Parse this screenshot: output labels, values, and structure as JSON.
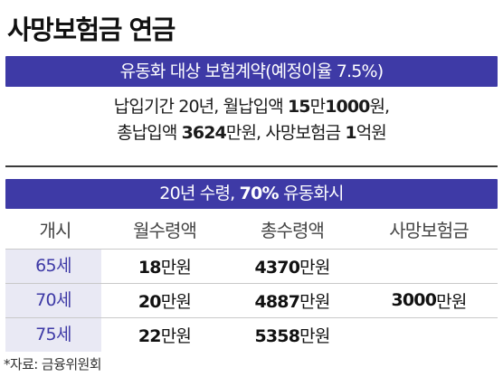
{
  "title": "사망보험금 연금",
  "band1": "유동화 대상 보험계약(예정이율 7.5%)",
  "summary": {
    "line1_prefix": "납입기간 20년, 월납입액 ",
    "line1_bold1": "15",
    "line1_mid": "만",
    "line1_bold2": "1000",
    "line1_suffix": "원,",
    "line2_prefix": "총납입액 ",
    "line2_bold1": "3624",
    "line2_mid": "만원, 사망보험금 ",
    "line2_bold2": "1",
    "line2_suffix": "억원"
  },
  "band2": {
    "prefix": "20년 수령, ",
    "bold": "70%",
    "suffix": " 유동화시"
  },
  "table": {
    "headers": [
      "개시",
      "월수령액",
      "총수령액",
      "사망보험금"
    ],
    "rows": [
      {
        "age": "65세",
        "monthly_num": "18",
        "monthly_unit": "만원",
        "total_num": "4370",
        "total_unit": "만원"
      },
      {
        "age": "70세",
        "monthly_num": "20",
        "monthly_unit": "만원",
        "total_num": "4887",
        "total_unit": "만원"
      },
      {
        "age": "75세",
        "monthly_num": "22",
        "monthly_unit": "만원",
        "total_num": "5358",
        "total_unit": "만원"
      }
    ],
    "death_benefit_num": "3000",
    "death_benefit_unit": "만원"
  },
  "source": "*자료: 금융위원회"
}
